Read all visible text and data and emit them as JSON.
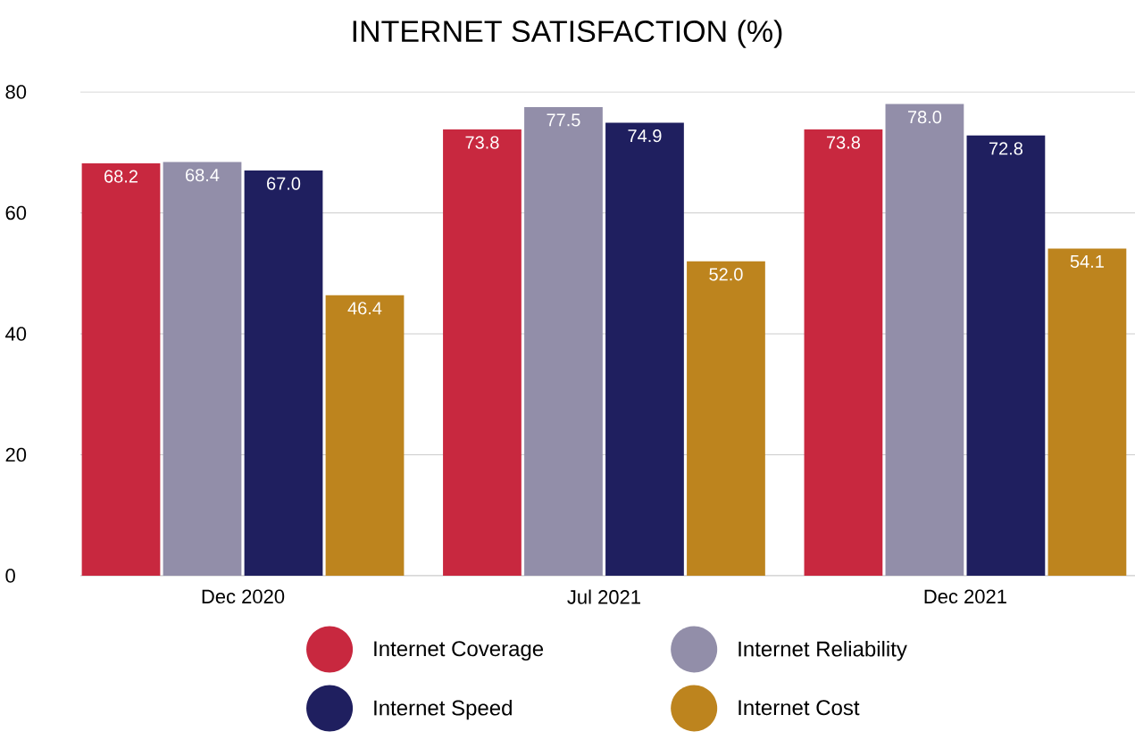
{
  "chart_data": {
    "type": "bar",
    "title": "INTERNET SATISFACTION (%)",
    "categories": [
      "Dec 2020",
      "Jul 2021",
      "Dec 2021"
    ],
    "series": [
      {
        "name": "Internet Coverage",
        "color": "#c8283f",
        "values": [
          68.2,
          73.8,
          73.8
        ],
        "value_labels": [
          "68.2",
          "73.8",
          "73.8"
        ]
      },
      {
        "name": "Internet Reliability",
        "color": "#928ea9",
        "values": [
          68.4,
          77.5,
          78.0
        ],
        "value_labels": [
          "68.4",
          "77.5",
          "78.0"
        ]
      },
      {
        "name": "Internet Speed",
        "color": "#1f1f5f",
        "values": [
          67.0,
          74.9,
          72.8
        ],
        "value_labels": [
          "67.0",
          "74.9",
          "72.8"
        ]
      },
      {
        "name": "Internet Cost",
        "color": "#bd841e",
        "values": [
          46.4,
          52.0,
          54.1
        ],
        "value_labels": [
          "46.4",
          "52.0",
          "54.1"
        ]
      }
    ],
    "ylim": [
      0,
      80
    ],
    "yticks": [
      0,
      20,
      40,
      60,
      80
    ],
    "grid": "y",
    "legend": "bottom"
  }
}
